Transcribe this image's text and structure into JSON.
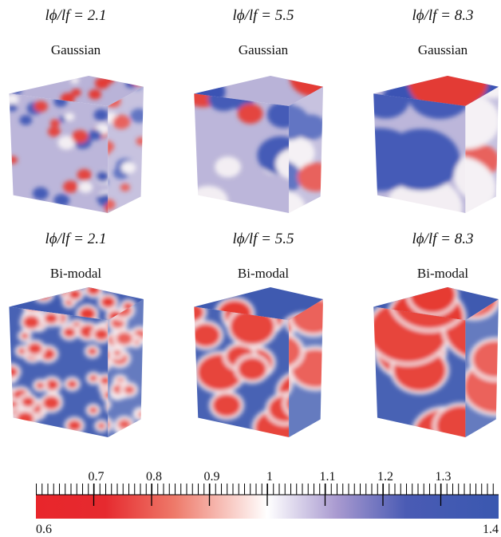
{
  "panels": [
    {
      "ratio": "lϕ/lf = 2.1",
      "distribution": "Gaussian"
    },
    {
      "ratio": "lϕ/lf = 5.5",
      "distribution": "Gaussian"
    },
    {
      "ratio": "lϕ/lf = 8.3",
      "distribution": "Gaussian"
    },
    {
      "ratio": "lϕ/lf = 2.1",
      "distribution": "Bi-modal"
    },
    {
      "ratio": "lϕ/lf = 5.5",
      "distribution": "Bi-modal"
    },
    {
      "ratio": "lϕ/lf = 8.3",
      "distribution": "Bi-modal"
    }
  ],
  "colorbar": {
    "min": 0.6,
    "max": 1.4,
    "ticks": [
      0.7,
      0.8,
      0.9,
      1,
      1.1,
      1.2,
      1.3
    ]
  }
}
